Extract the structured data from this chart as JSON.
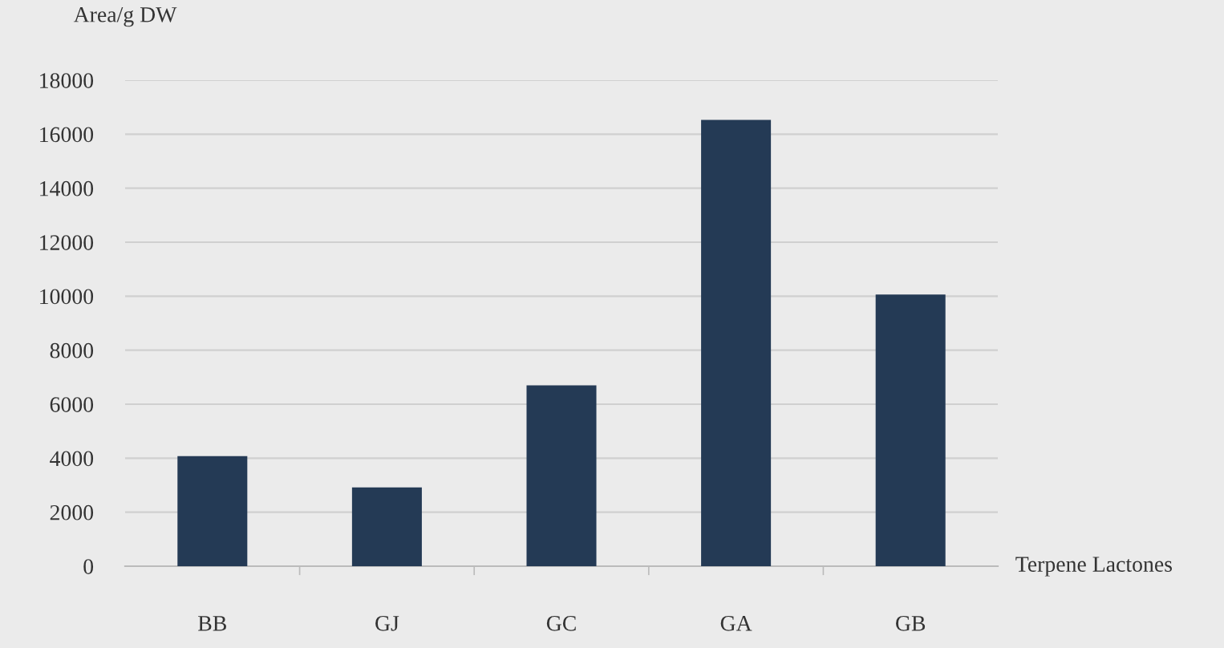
{
  "chart_data": {
    "type": "bar",
    "ylabel": "Area/g DW",
    "xlabel": "Terpene Lactones",
    "categories": [
      "BB",
      "GJ",
      "GC",
      "GA",
      "GB"
    ],
    "values": [
      4080,
      2920,
      6700,
      16530,
      10060
    ],
    "color": "#243a55",
    "ylim": [
      0,
      18000
    ],
    "yticks": [
      0,
      2000,
      4000,
      6000,
      8000,
      10000,
      12000,
      14000,
      16000,
      18000
    ],
    "grid": "y",
    "legend": false
  }
}
